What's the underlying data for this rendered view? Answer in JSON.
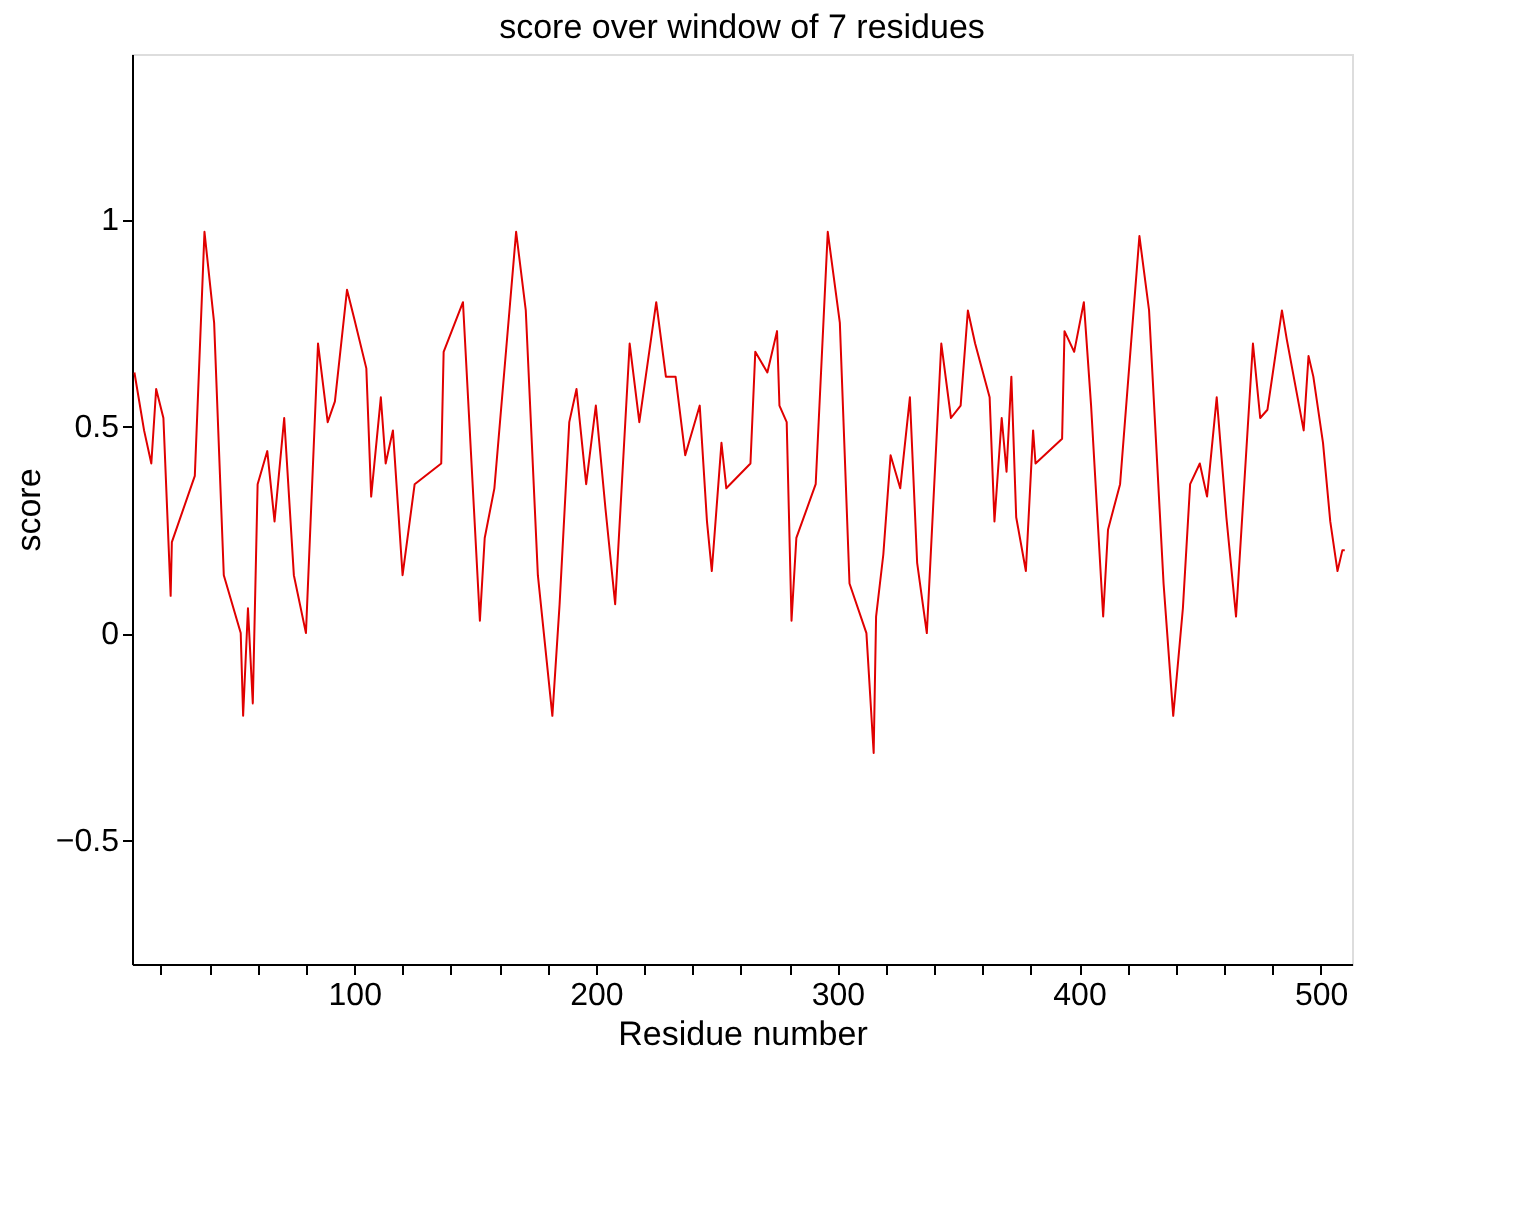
{
  "chart_data": {
    "type": "line",
    "title": "score over window of 7 residues",
    "xlabel": "Residue number",
    "ylabel": "score",
    "x": [
      9,
      13,
      16,
      18,
      21,
      24,
      24.5,
      34,
      38,
      42,
      46,
      53,
      54,
      56,
      58,
      60,
      64,
      67,
      71,
      75,
      80,
      85,
      89,
      92,
      97,
      100,
      105,
      107,
      111,
      113,
      116,
      120,
      125,
      136,
      137,
      145,
      152,
      154,
      158,
      167,
      171,
      176,
      182,
      185,
      189,
      192,
      196,
      200,
      204,
      208,
      214,
      218,
      225,
      229,
      233,
      237,
      243,
      246,
      248,
      252,
      254,
      264,
      266,
      271,
      275,
      276,
      279,
      281,
      283,
      291,
      296,
      301,
      305,
      312,
      315,
      316,
      319,
      322,
      326,
      330,
      333,
      337,
      343,
      347,
      351,
      354,
      357,
      363,
      365,
      368,
      370,
      372,
      374,
      378,
      381,
      382,
      393,
      394,
      398,
      402,
      405,
      410,
      412,
      417,
      425,
      429,
      435,
      439,
      443,
      446,
      450,
      453,
      457,
      461,
      465,
      472,
      475,
      478,
      484,
      486,
      493,
      495,
      497,
      501,
      504,
      507,
      509,
      510
    ],
    "series": [
      {
        "color": "#e00000",
        "values": [
          0.63,
          0.49,
          0.41,
          0.59,
          0.52,
          0.09,
          0.22,
          0.38,
          0.97,
          0.75,
          0.14,
          0.0,
          -0.2,
          0.06,
          -0.17,
          0.36,
          0.44,
          0.27,
          0.52,
          0.14,
          0.0,
          0.7,
          0.51,
          0.56,
          0.83,
          0.76,
          0.64,
          0.33,
          0.57,
          0.41,
          0.49,
          0.14,
          0.36,
          0.41,
          0.68,
          0.8,
          0.03,
          0.23,
          0.35,
          0.97,
          0.78,
          0.14,
          -0.2,
          0.07,
          0.51,
          0.59,
          0.36,
          0.55,
          0.3,
          0.07,
          0.7,
          0.51,
          0.8,
          0.62,
          0.62,
          0.43,
          0.55,
          0.27,
          0.15,
          0.46,
          0.35,
          0.41,
          0.68,
          0.63,
          0.73,
          0.55,
          0.51,
          0.03,
          0.23,
          0.36,
          0.97,
          0.75,
          0.12,
          0.0,
          -0.29,
          0.04,
          0.19,
          0.43,
          0.35,
          0.57,
          0.17,
          0.0,
          0.7,
          0.52,
          0.55,
          0.78,
          0.7,
          0.57,
          0.27,
          0.52,
          0.39,
          0.62,
          0.28,
          0.15,
          0.49,
          0.41,
          0.47,
          0.73,
          0.68,
          0.8,
          0.55,
          0.04,
          0.25,
          0.36,
          0.96,
          0.78,
          0.12,
          -0.2,
          0.06,
          0.36,
          0.41,
          0.33,
          0.57,
          0.28,
          0.04,
          0.7,
          0.52,
          0.54,
          0.78,
          0.71,
          0.49,
          0.67,
          0.62,
          0.46,
          0.27,
          0.15,
          0.2,
          0.2
        ]
      }
    ],
    "xlim": [
      8,
      513
    ],
    "ylim": [
      -0.8,
      1.4
    ],
    "xticks": [
      {
        "value": 20,
        "label": null
      },
      {
        "value": 40,
        "label": null
      },
      {
        "value": 60,
        "label": null
      },
      {
        "value": 80,
        "label": null
      },
      100,
      {
        "value": 120,
        "label": null
      },
      {
        "value": 140,
        "label": null
      },
      {
        "value": 160,
        "label": null
      },
      {
        "value": 180,
        "label": null
      },
      200,
      {
        "value": 220,
        "label": null
      },
      {
        "value": 240,
        "label": null
      },
      {
        "value": 260,
        "label": null
      },
      {
        "value": 280,
        "label": null
      },
      300,
      {
        "value": 320,
        "label": null
      },
      {
        "value": 340,
        "label": null
      },
      {
        "value": 360,
        "label": null
      },
      {
        "value": 380,
        "label": null
      },
      400,
      {
        "value": 420,
        "label": null
      },
      {
        "value": 440,
        "label": null
      },
      {
        "value": 460,
        "label": null
      },
      {
        "value": 480,
        "label": null
      },
      500
    ],
    "yticks": [
      -0.5,
      0,
      0.5,
      1
    ],
    "grid": false,
    "marker": "none",
    "line_style": "solid"
  }
}
